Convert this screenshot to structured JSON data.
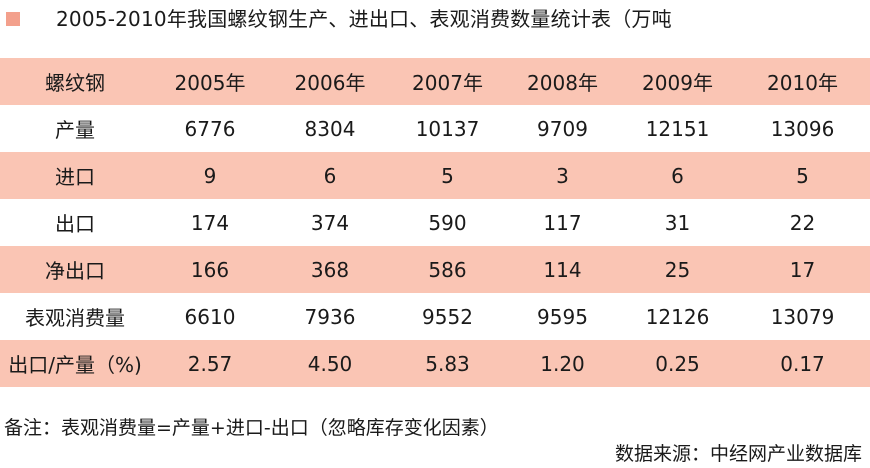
{
  "title": "2005-2010年我国螺纹钢生产、进出口、表观消费数量统计表（万吨",
  "accent_color": "#f3a08c",
  "band_color": "#fac5b4",
  "table": {
    "header": [
      "螺纹钢",
      "2005年",
      "2006年",
      "2007年",
      "2008年",
      "2009年",
      "2010年"
    ],
    "rows": [
      {
        "label": "产量",
        "values": [
          "6776",
          "8304",
          "10137",
          "9709",
          "12151",
          "13096"
        ]
      },
      {
        "label": "进口",
        "values": [
          "9",
          "6",
          "5",
          "3",
          "6",
          "5"
        ]
      },
      {
        "label": "出口",
        "values": [
          "174",
          "374",
          "590",
          "117",
          "31",
          "22"
        ]
      },
      {
        "label": "净出口",
        "values": [
          "166",
          "368",
          "586",
          "114",
          "25",
          "17"
        ]
      },
      {
        "label": "表观消费量",
        "values": [
          "6610",
          "7936",
          "9552",
          "9595",
          "12126",
          "13079"
        ]
      },
      {
        "label": "出口/产量（%)",
        "values": [
          "2.57",
          "4.50",
          "5.83",
          "1.20",
          "0.25",
          "0.17"
        ]
      }
    ]
  },
  "note": "备注：表观消费量=产量+进口-出口（忽略库存变化因素）",
  "source": "数据来源：中经网产业数据库"
}
